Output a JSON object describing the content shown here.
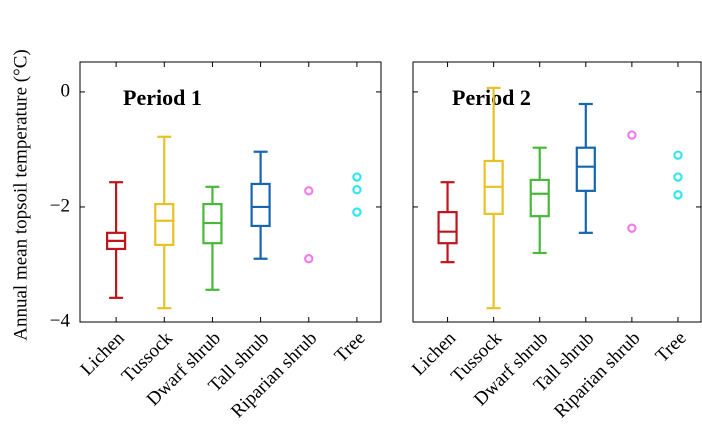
{
  "chart_data": [
    {
      "type": "box",
      "title": "Period 1",
      "ylabel": "Annual mean topsoil temperature (°C)",
      "categories": [
        "Lichen",
        "Tussock",
        "Dwarf shrub",
        "Tall shrub",
        "Riparian shrub",
        "Tree"
      ],
      "colors": [
        "#c0141c",
        "#e8c124",
        "#48b83a",
        "#1565b0",
        "#f07cf0",
        "#33e6ee"
      ],
      "boxes": [
        {
          "min": -3.58,
          "q1": -2.73,
          "median": -2.59,
          "q3": -2.45,
          "max": -1.57
        },
        {
          "min": -3.76,
          "q1": -2.66,
          "median": -2.24,
          "q3": -1.95,
          "max": -0.78
        },
        {
          "min": -3.44,
          "q1": -2.63,
          "median": -2.28,
          "q3": -1.95,
          "max": -1.65
        },
        {
          "min": -2.9,
          "q1": -2.33,
          "median": -2.0,
          "q3": -1.6,
          "max": -1.04
        },
        null,
        null
      ],
      "outliers": [
        [],
        [],
        [],
        [],
        [
          -1.72,
          -2.9
        ],
        [
          -1.48,
          -1.7,
          -2.09
        ]
      ],
      "ylim": [
        -4,
        0.52
      ],
      "yticks": [
        {
          "value": 0,
          "label": "0"
        },
        {
          "value": -2,
          "label": "−2"
        },
        {
          "value": -4,
          "label": "−4"
        }
      ]
    },
    {
      "type": "box",
      "title": "Period 2",
      "categories": [
        "Lichen",
        "Tussock",
        "Dwarf shrub",
        "Tall shrub",
        "Riparian shrub",
        "Tree"
      ],
      "colors": [
        "#c0141c",
        "#e8c124",
        "#48b83a",
        "#1565b0",
        "#f07cf0",
        "#33e6ee"
      ],
      "boxes": [
        {
          "min": -2.96,
          "q1": -2.63,
          "median": -2.43,
          "q3": -2.09,
          "max": -1.57
        },
        {
          "min": -3.76,
          "q1": -2.12,
          "median": -1.65,
          "q3": -1.2,
          "max": 0.07
        },
        {
          "min": -2.8,
          "q1": -2.16,
          "median": -1.77,
          "q3": -1.53,
          "max": -0.97
        },
        {
          "min": -2.45,
          "q1": -1.72,
          "median": -1.3,
          "q3": -0.97,
          "max": -0.21
        },
        null,
        null
      ],
      "outliers": [
        [],
        [],
        [],
        [],
        [
          -0.75,
          -2.37
        ],
        [
          -1.1,
          -1.48,
          -1.79
        ]
      ],
      "ylim": [
        -4,
        0.52
      ]
    }
  ]
}
